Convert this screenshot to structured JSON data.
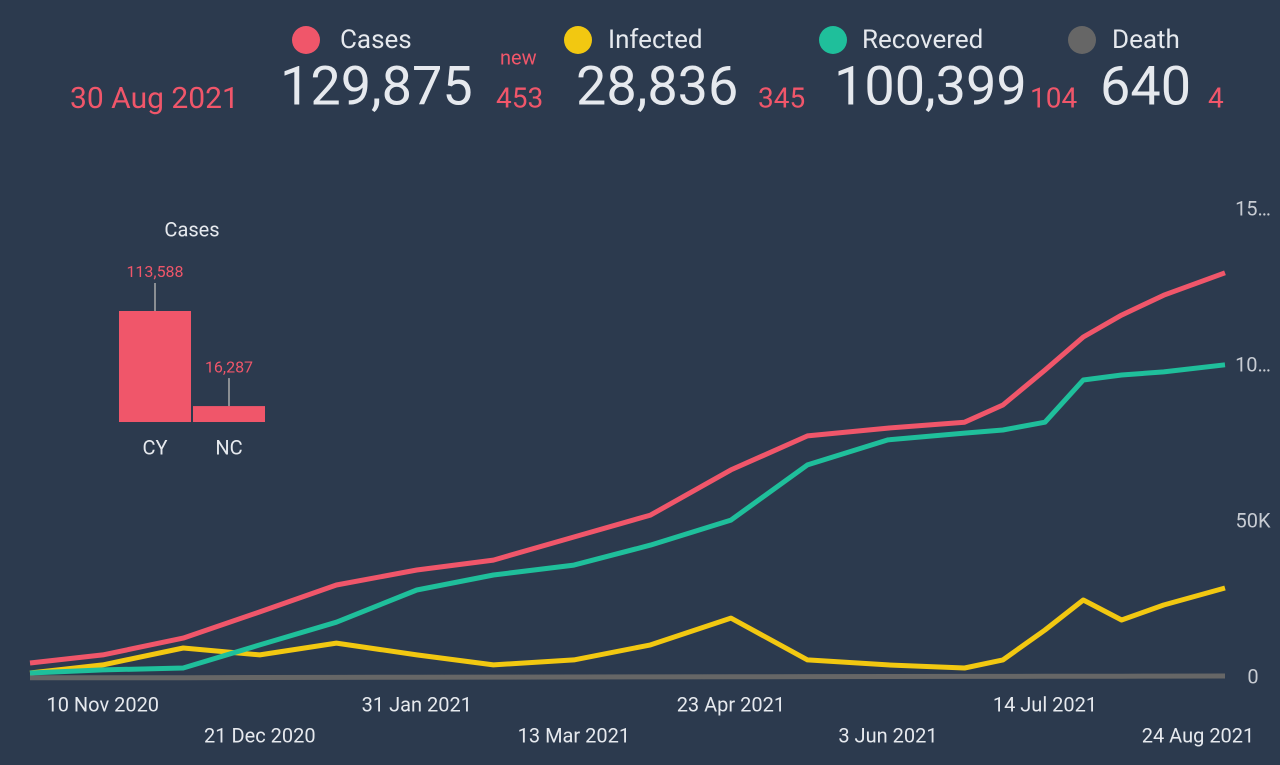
{
  "header": {
    "date": "30 Aug 2021",
    "new_label": "new",
    "stats": [
      {
        "name": "Cases",
        "color": "#f0566a",
        "total": "129,875",
        "new": "453"
      },
      {
        "name": "Infected",
        "color": "#f2c811",
        "total": "28,836",
        "new": "345"
      },
      {
        "name": "Recovered",
        "color": "#1fbf9b",
        "total": "100,399",
        "new": "104"
      },
      {
        "name": "Death",
        "color": "#666666",
        "total": "640",
        "new": "4"
      }
    ]
  },
  "chart_data": [
    {
      "type": "bar",
      "title": "Cases",
      "categories": [
        "CY",
        "NC"
      ],
      "values": [
        113588,
        16287
      ],
      "value_labels": [
        "113,588",
        "16,287"
      ],
      "color": "#f0566a"
    },
    {
      "type": "line",
      "x": [
        "2020-10-22",
        "2020-11-10",
        "2020-12-01",
        "2020-12-21",
        "2021-01-10",
        "2021-01-31",
        "2021-02-20",
        "2021-03-13",
        "2021-04-02",
        "2021-04-23",
        "2021-05-13",
        "2021-06-03",
        "2021-06-23",
        "2021-07-03",
        "2021-07-14",
        "2021-07-24",
        "2021-08-03",
        "2021-08-14",
        "2021-08-30"
      ],
      "series": [
        {
          "name": "Death",
          "color": "#666666",
          "values": [
            50,
            80,
            110,
            150,
            200,
            260,
            300,
            330,
            360,
            400,
            450,
            480,
            500,
            510,
            530,
            560,
            590,
            610,
            640
          ]
        },
        {
          "name": "Infected",
          "color": "#f2c811",
          "values": [
            1600,
            4200,
            9600,
            7400,
            11200,
            7400,
            4200,
            5800,
            10600,
            19200,
            5800,
            4200,
            3200,
            5800,
            15400,
            25000,
            18600,
            23400,
            28836
          ]
        },
        {
          "name": "Recovered",
          "color": "#1fbf9b",
          "values": [
            1600,
            2600,
            3200,
            10600,
            17900,
            28200,
            33000,
            36200,
            42600,
            50600,
            68300,
            76300,
            78500,
            79500,
            82000,
            95500,
            97100,
            98100,
            100399
          ]
        },
        {
          "name": "Cases",
          "color": "#f0566a",
          "values": [
            4800,
            7400,
            12800,
            21200,
            29800,
            34600,
            37800,
            45200,
            52200,
            66700,
            77600,
            80100,
            82000,
            87500,
            98700,
            109300,
            116300,
            122700,
            129875
          ]
        }
      ],
      "xlim": [
        "2020-10-22",
        "2021-08-30"
      ],
      "xticks": [
        {
          "value": "2020-11-10",
          "label": "10 Nov 2020"
        },
        {
          "value": "2020-12-21",
          "label": "21 Dec 2020"
        },
        {
          "value": "2021-01-31",
          "label": "31 Jan 2021"
        },
        {
          "value": "2021-03-13",
          "label": "13 Mar 2021"
        },
        {
          "value": "2021-04-23",
          "label": "23 Apr 2021"
        },
        {
          "value": "2021-06-03",
          "label": "3 Jun 2021"
        },
        {
          "value": "2021-07-14",
          "label": "14 Jul 2021"
        },
        {
          "value": "2021-08-24",
          "label": "24 Aug 2021"
        }
      ],
      "ylim": [
        0,
        150000
      ],
      "yticks": [
        0,
        {
          "value": 50000,
          "label": "50K"
        },
        {
          "value": 100000,
          "label": "10…"
        },
        {
          "value": 150000,
          "label": "15…"
        }
      ]
    }
  ]
}
